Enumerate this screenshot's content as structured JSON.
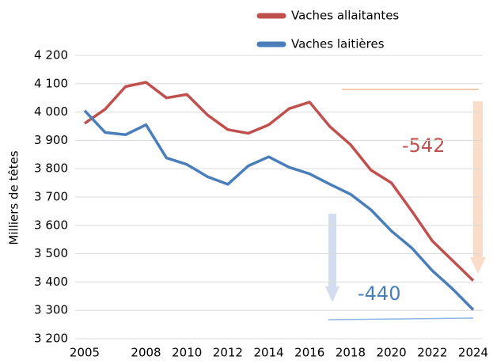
{
  "chart_data": {
    "type": "line",
    "y_label": "Milliers de têtes",
    "x": [
      2005,
      2006,
      2007,
      2008,
      2009,
      2010,
      2011,
      2012,
      2013,
      2014,
      2015,
      2016,
      2017,
      2018,
      2019,
      2020,
      2021,
      2022,
      2023,
      2024
    ],
    "series": [
      {
        "name": "Vaches allaitantes",
        "color": "#c0504d",
        "values": [
          3960,
          4010,
          4090,
          4105,
          4050,
          4062,
          3990,
          3938,
          3925,
          3955,
          4012,
          4035,
          3948,
          3885,
          3795,
          3750,
          3650,
          3545,
          3475,
          3405
        ]
      },
      {
        "name": "Vaches laitières",
        "color": "#4a7ebb",
        "values": [
          4005,
          3928,
          3920,
          3955,
          3838,
          3815,
          3772,
          3745,
          3810,
          3842,
          3805,
          3782,
          3745,
          3710,
          3655,
          3580,
          3520,
          3440,
          3375,
          3302
        ]
      }
    ],
    "annotations": [
      "-542",
      "-440"
    ],
    "xlim": [
      2005,
      2024
    ],
    "xticks": [
      2005,
      2008,
      2010,
      2012,
      2014,
      2016,
      2018,
      2020,
      2022,
      2024
    ],
    "ylim": [
      3200,
      4200
    ],
    "yticks": [
      {
        "value": 3200,
        "label": "3 200"
      },
      {
        "value": 3300,
        "label": "3 300"
      },
      {
        "value": 3400,
        "label": "3 400"
      },
      {
        "value": 3500,
        "label": "3 500"
      },
      {
        "value": 3600,
        "label": "3 600"
      },
      {
        "value": 3700,
        "label": "3 700"
      },
      {
        "value": 3800,
        "label": "3 800"
      },
      {
        "value": 3900,
        "label": "3 900"
      },
      {
        "value": 4000,
        "label": "4 000"
      },
      {
        "value": 4100,
        "label": "4 100"
      },
      {
        "value": 4200,
        "label": "4 200"
      }
    ],
    "grid": true
  }
}
